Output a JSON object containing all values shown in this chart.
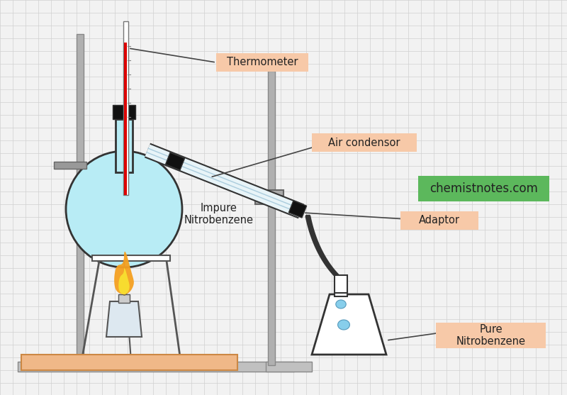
{
  "bg_color": "#f2f2f2",
  "grid_color": "#d0d0d0",
  "labels": {
    "thermometer": "Thermometer",
    "air_condensor": "Air condensor",
    "adaptor": "Adaptor",
    "impure": "Impure\nNitrobenzene",
    "pure": "Pure\nNitrobenzene",
    "website": "chemistnotes.com"
  },
  "label_box_peach": "#f7c9a8",
  "label_box_green": "#5cb85c",
  "flask_color": "#b8ecf5",
  "flame_orange": "#f5a020",
  "flame_yellow": "#f8e030",
  "drop_color": "#87ceeb",
  "thermometer_red": "#dd0000",
  "dark": "#333333",
  "gray": "#999999",
  "darkgray": "#555555",
  "label_font_size": 10.5
}
